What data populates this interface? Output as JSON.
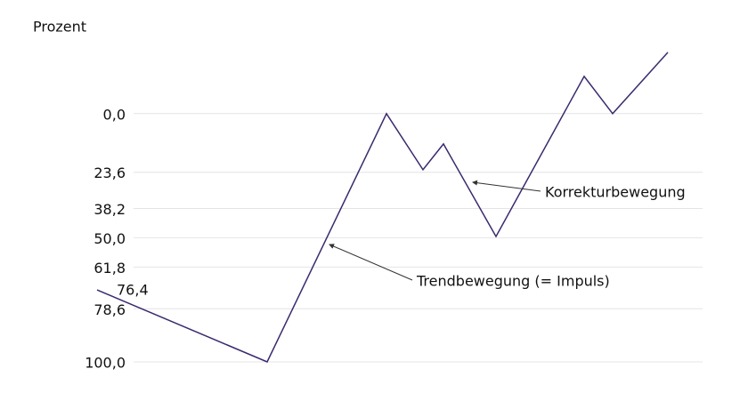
{
  "chart_data": {
    "type": "line",
    "y_label": "Prozent",
    "x": [
      0,
      19.1,
      32.5,
      36.6,
      38.9,
      44.8,
      54.7,
      57.9,
      64.1
    ],
    "series": [
      {
        "color": "#3b2a6e",
        "values": [
          71,
          100,
          0,
          22.6,
          12.2,
          49.5,
          -15,
          0,
          -24.7
        ]
      }
    ],
    "xlim": [
      -4.1,
      68
    ],
    "ylim": [
      100,
      -25
    ],
    "y_inverted": true,
    "yticks": [
      {
        "value": 0,
        "label": "0,0"
      },
      {
        "value": 23.6,
        "label": "23,6"
      },
      {
        "value": 38.2,
        "label": "38,2"
      },
      {
        "value": 50,
        "label": "50,0"
      },
      {
        "value": 61.8,
        "label": "61,8"
      },
      {
        "value": 78.6,
        "label": "78,6"
      },
      {
        "value": 100,
        "label": "100,0"
      }
    ],
    "grid": true,
    "annotations": [
      {
        "text": "76,4"
      },
      {
        "text": "Trendbewegung (= Impuls)"
      },
      {
        "text": "Korrekturbewegung"
      }
    ]
  }
}
